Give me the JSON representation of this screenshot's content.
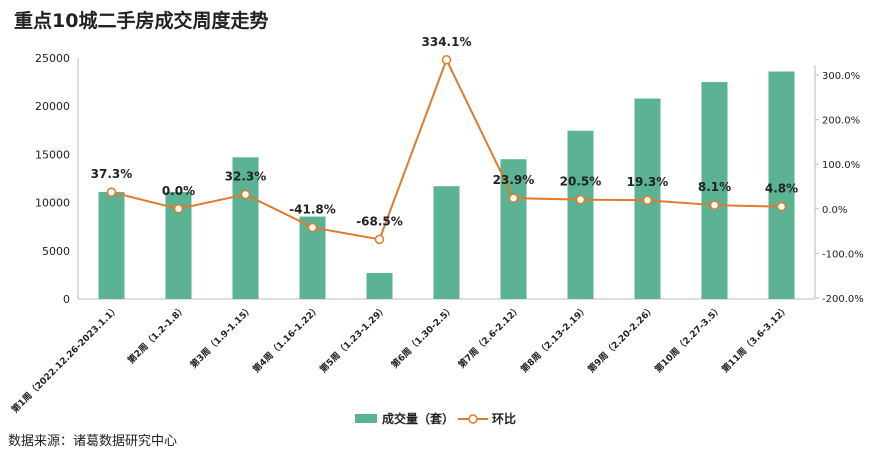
{
  "chart_data": {
    "type": "bar+line",
    "title": "重点10城二手房成交周度走势",
    "source": "数据来源：诸葛数据研究中心",
    "categories": [
      "第1周（2022.12.26-2023.1.1）",
      "第2周（1.2-1.8）",
      "第3周（1.9-1.15）",
      "第4周（1.16-1.22）",
      "第5周（1.23-1.29）",
      "第6周（1.30-2.5）",
      "第7周（2.6-2.12）",
      "第8周（2.13-2.19）",
      "第9周（2.20-2.26）",
      "第10周（2.27-3.5）",
      "第11周（3.6-3.12）"
    ],
    "series": [
      {
        "name": "成交量（套）",
        "type": "bar",
        "axis": "left",
        "color": "#5bb394",
        "values": [
          11100,
          11100,
          14700,
          8550,
          2700,
          11700,
          14500,
          17450,
          20800,
          22500,
          23600
        ]
      },
      {
        "name": "环比",
        "type": "line",
        "axis": "right",
        "color": "#e07b2a",
        "values": [
          37.3,
          0.0,
          32.3,
          -41.8,
          -68.5,
          334.1,
          23.9,
          20.5,
          19.3,
          8.1,
          4.8
        ],
        "labels": [
          "37.3%",
          "0.0%",
          "32.3%",
          "-41.8%",
          "-68.5%",
          "334.1%",
          "23.9%",
          "20.5%",
          "19.3%",
          "8.1%",
          "4.8%"
        ]
      }
    ],
    "left_axis": {
      "ylim": [
        0,
        25000
      ],
      "ticks": [
        "0",
        "5000",
        "10000",
        "15000",
        "20000",
        "25000"
      ]
    },
    "right_axis": {
      "ylim": [
        -200,
        300
      ],
      "ticks": [
        "-200.0%",
        "-100.0%",
        "0.0%",
        "100.0%",
        "200.0%",
        "300.0%"
      ]
    },
    "legend": "bottom",
    "grid": false
  }
}
